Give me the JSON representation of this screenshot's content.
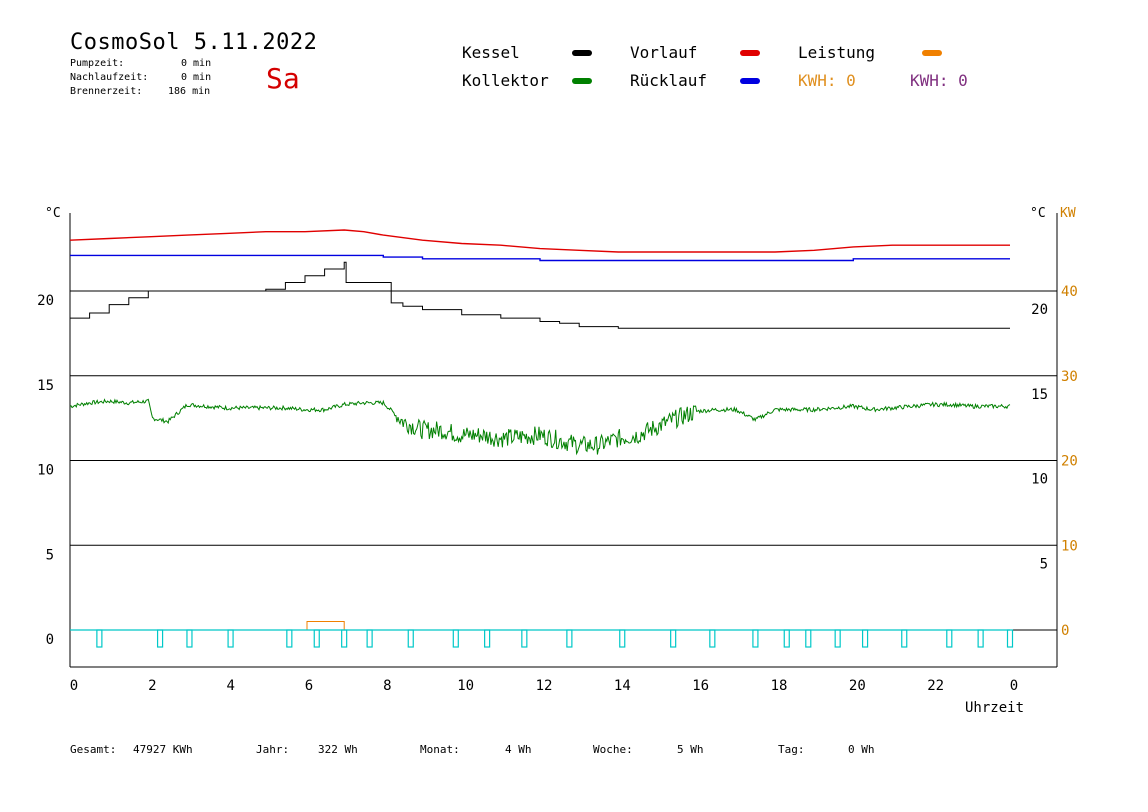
{
  "header": {
    "title": "CosmoSol 5.11.2022",
    "weekday": "Sa",
    "pumpzeit_label": "Pumpzeit:",
    "pumpzeit_value": "0 min",
    "nachlauf_label": "Nachlaufzeit:",
    "nachlauf_value": "0 min",
    "brenner_label": "Brennerzeit:",
    "brenner_value": "186 min"
  },
  "legend": {
    "kessel": "Kessel",
    "kollektor": "Kollektor",
    "vorlauf": "Vorlauf",
    "ruecklauf": "Rücklauf",
    "leistung": "Leistung",
    "kwh1": "KWH: 0",
    "kwh2": "KWH: 0"
  },
  "colors": {
    "kessel": "#000000",
    "kollektor": "#008000",
    "vorlauf": "#e00000",
    "ruecklauf": "#0000e0",
    "leistung": "#f08000",
    "kwh2": "#803080",
    "pump": "#00c8c8",
    "axis_right": "#d08000"
  },
  "axes": {
    "left_unit": "°C",
    "right_unit_c": "°C",
    "right_unit_kw": "KW",
    "xlabel": "Uhrzeit"
  },
  "footer": {
    "gesamt_label": "Gesamt:",
    "gesamt_value": "47927 KWh",
    "jahr_label": "Jahr:",
    "jahr_value": "322 Wh",
    "monat_label": "Monat:",
    "monat_value": "4 Wh",
    "woche_label": "Woche:",
    "woche_value": "5 Wh",
    "tag_label": "Tag:",
    "tag_value": "0 Wh"
  },
  "chart_data": {
    "type": "line",
    "x_ticks": [
      "0",
      "2",
      "4",
      "6",
      "8",
      "10",
      "12",
      "14",
      "16",
      "18",
      "20",
      "22",
      "0"
    ],
    "xlim": [
      0,
      24
    ],
    "ylim": [
      -2,
      25
    ],
    "ylim_kw": [
      -4,
      50
    ],
    "y_ticks_left": [
      "0",
      "5",
      "10",
      "15",
      "20"
    ],
    "y_ticks_right_c": [
      "5",
      "10",
      "15",
      "20"
    ],
    "y_ticks_right_kw": [
      "0",
      "10",
      "20",
      "30",
      "40"
    ],
    "grid_y": [
      0,
      5,
      10,
      15,
      20
    ],
    "series": [
      {
        "name": "Vorlauf",
        "color_key": "vorlauf",
        "x": [
          0,
          1,
          2,
          3,
          4,
          5,
          6,
          7,
          7.5,
          8,
          9,
          10,
          11,
          12,
          13,
          14,
          15,
          16,
          17,
          18,
          19,
          20,
          21,
          22,
          23,
          24
        ],
        "y": [
          23.0,
          23.1,
          23.2,
          23.3,
          23.4,
          23.5,
          23.5,
          23.6,
          23.5,
          23.3,
          23.0,
          22.8,
          22.7,
          22.5,
          22.4,
          22.3,
          22.3,
          22.3,
          22.3,
          22.3,
          22.4,
          22.6,
          22.7,
          22.7,
          22.7,
          22.7
        ]
      },
      {
        "name": "Rücklauf",
        "color_key": "ruecklauf",
        "x": [
          0,
          2,
          4,
          6,
          7,
          8,
          9,
          10,
          12,
          14,
          16,
          18,
          20,
          22,
          24
        ],
        "y": [
          22.1,
          22.1,
          22.1,
          22.1,
          22.1,
          22.0,
          21.9,
          21.9,
          21.8,
          21.8,
          21.8,
          21.8,
          21.9,
          21.9,
          21.9
        ],
        "step": true
      },
      {
        "name": "Kessel",
        "color_key": "kessel",
        "x": [
          0,
          0.5,
          1,
          1.5,
          2,
          2.5,
          3,
          3.5,
          4,
          4.5,
          5,
          5.5,
          6,
          6.5,
          7,
          7.05,
          7.5,
          8,
          8.2,
          8.5,
          9,
          10,
          11,
          12,
          12.5,
          13,
          14,
          15,
          16,
          17,
          18,
          19,
          20,
          21,
          22,
          23,
          24
        ],
        "y": [
          18.4,
          18.7,
          19.2,
          19.6,
          20.0,
          20.0,
          20.0,
          20.0,
          20.0,
          20.0,
          20.1,
          20.5,
          20.9,
          21.3,
          21.7,
          20.5,
          20.5,
          20.5,
          19.3,
          19.1,
          18.9,
          18.6,
          18.4,
          18.2,
          18.1,
          17.9,
          17.8,
          17.8,
          17.8,
          17.8,
          17.8,
          17.8,
          17.8,
          17.8,
          17.8,
          17.8,
          17.8
        ],
        "step": true
      },
      {
        "name": "Kollektor",
        "color_key": "kollektor",
        "x": [
          0,
          0.5,
          1,
          1.5,
          2,
          2.1,
          2.5,
          3,
          3.5,
          4,
          4.5,
          5,
          5.5,
          6,
          6.5,
          7,
          7.5,
          8,
          8.5,
          9,
          9.5,
          10,
          10.5,
          11,
          11.5,
          12,
          12.5,
          13,
          13.5,
          14,
          14.5,
          15,
          15.5,
          16,
          16.5,
          17,
          17.5,
          18,
          18.5,
          19,
          19.5,
          20,
          20.5,
          21,
          21.5,
          22,
          22.5,
          23,
          23.5,
          24
        ],
        "y": [
          13.2,
          13.4,
          13.5,
          13.4,
          13.5,
          12.5,
          12.3,
          13.3,
          13.2,
          13.1,
          13.1,
          13.1,
          13.1,
          13.0,
          13.0,
          13.3,
          13.4,
          13.4,
          12.3,
          11.8,
          11.8,
          11.5,
          11.5,
          11.3,
          11.4,
          11.5,
          11.2,
          10.9,
          10.9,
          11.3,
          11.5,
          12.0,
          12.5,
          12.9,
          13.0,
          13.0,
          12.4,
          13.0,
          13.0,
          13.0,
          13.1,
          13.2,
          13.0,
          13.1,
          13.2,
          13.3,
          13.3,
          13.2,
          13.2,
          13.2
        ],
        "noise": true
      },
      {
        "name": "Leistung",
        "color_key": "leistung",
        "x": [
          6.05,
          6.05,
          7.0,
          7.0
        ],
        "y": [
          0,
          0.5,
          0.5,
          0
        ],
        "unit": "°C"
      }
    ],
    "pump_pulses_hours": [
      0.75,
      2.3,
      3.05,
      4.1,
      5.6,
      6.3,
      7.0,
      7.65,
      8.7,
      9.85,
      10.65,
      11.6,
      12.75,
      14.1,
      15.4,
      16.4,
      17.5,
      18.3,
      18.85,
      19.6,
      20.3,
      21.3,
      22.45,
      23.25,
      24.0
    ]
  }
}
